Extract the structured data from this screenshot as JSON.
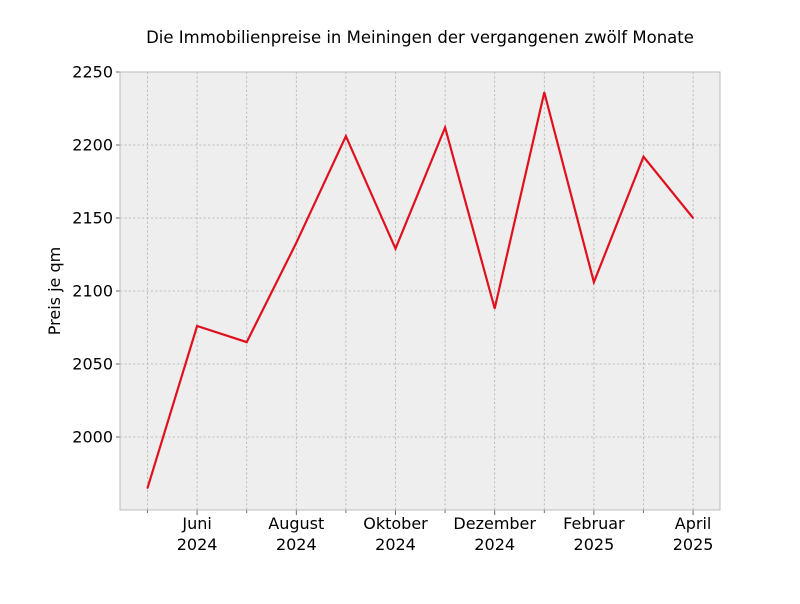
{
  "chart_data": {
    "type": "line",
    "title": "Die Immobilienpreise in Meiningen der vergangenen zwölf Monate",
    "xlabel": "",
    "ylabel": "Preis je qm",
    "x": [
      "2024-05",
      "2024-06",
      "2024-07",
      "2024-08",
      "2024-09",
      "2024-10",
      "2024-11",
      "2024-12",
      "2025-01",
      "2025-02",
      "2025-03",
      "2025-04"
    ],
    "series": [
      {
        "values": [
          1965,
          2076,
          2065,
          2133,
          2206,
          2129,
          2212,
          2088,
          2236,
          2106,
          2192,
          2150
        ],
        "color": "#e0101e"
      }
    ],
    "ylim": [
      1950,
      2250
    ],
    "yticks": [
      2000,
      2050,
      2100,
      2150,
      2200,
      2250
    ],
    "xtick_labels": [
      {
        "x": "2024-06",
        "month": "Juni",
        "year": "2024"
      },
      {
        "x": "2024-08",
        "month": "August",
        "year": "2024"
      },
      {
        "x": "2024-10",
        "month": "Oktober",
        "year": "2024"
      },
      {
        "x": "2024-12",
        "month": "Dezember",
        "year": "2024"
      },
      {
        "x": "2025-02",
        "month": "Februar",
        "year": "2025"
      },
      {
        "x": "2025-04",
        "month": "April",
        "year": "2025"
      }
    ],
    "minor_ticks": [
      "2024-05",
      "2024-07",
      "2024-09",
      "2024-11",
      "2025-01",
      "2025-03"
    ],
    "grid": true,
    "style": {
      "background": "#eeeeee",
      "frame": "#bcbcbc",
      "line": "#e0101e"
    }
  }
}
